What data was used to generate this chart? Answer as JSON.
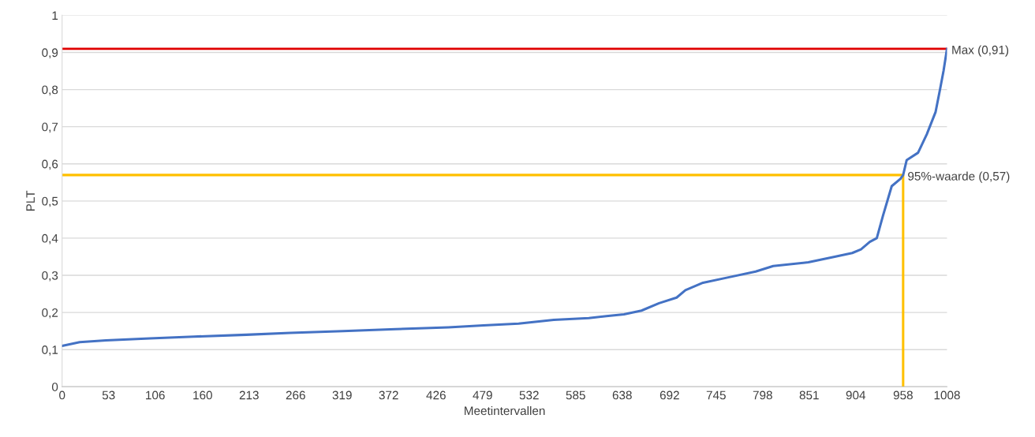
{
  "chart_data": {
    "type": "line",
    "xlabel": "Meetintervallen",
    "ylabel": "PLT",
    "xlim": [
      0,
      1008
    ],
    "xticks": [
      0,
      53,
      106,
      160,
      213,
      266,
      319,
      372,
      426,
      479,
      532,
      585,
      638,
      692,
      745,
      798,
      851,
      904,
      958,
      1008
    ],
    "ylim": [
      0,
      1
    ],
    "yticks": [
      {
        "value": 0,
        "label": "0"
      },
      {
        "value": 0.1,
        "label": "0,1"
      },
      {
        "value": 0.2,
        "label": "0,2"
      },
      {
        "value": 0.3,
        "label": "0,3"
      },
      {
        "value": 0.4,
        "label": "0,4"
      },
      {
        "value": 0.5,
        "label": "0,5"
      },
      {
        "value": 0.6,
        "label": "0,6"
      },
      {
        "value": 0.7,
        "label": "0,7"
      },
      {
        "value": 0.8,
        "label": "0,8"
      },
      {
        "value": 0.9,
        "label": "0,9"
      },
      {
        "value": 1,
        "label": "1"
      }
    ],
    "grid": "y",
    "legend": false,
    "marker": "none",
    "line_style": "solid",
    "series": [
      {
        "color": "#4472c4",
        "x": [
          0,
          20,
          50,
          100,
          150,
          210,
          260,
          320,
          380,
          440,
          480,
          520,
          560,
          600,
          620,
          640,
          660,
          680,
          700,
          710,
          730,
          760,
          790,
          810,
          850,
          880,
          900,
          910,
          920,
          928,
          935,
          945,
          955,
          958,
          962,
          975,
          985,
          995,
          1000,
          1004,
          1008
        ],
        "values": [
          0.11,
          0.12,
          0.125,
          0.13,
          0.135,
          0.14,
          0.145,
          0.15,
          0.155,
          0.16,
          0.165,
          0.17,
          0.18,
          0.185,
          0.19,
          0.195,
          0.205,
          0.225,
          0.24,
          0.26,
          0.28,
          0.295,
          0.31,
          0.325,
          0.335,
          0.35,
          0.36,
          0.37,
          0.39,
          0.4,
          0.46,
          0.54,
          0.56,
          0.57,
          0.61,
          0.63,
          0.68,
          0.74,
          0.8,
          0.85,
          0.91
        ]
      },
      {
        "color": "#ffc000",
        "x": [
          0,
          958,
          958
        ],
        "values": [
          0.57,
          0.57,
          0
        ]
      }
    ],
    "ref_lines": [
      {
        "axis": "y",
        "value": 0.91,
        "color": "#e00000"
      }
    ],
    "annotations": [
      {
        "text": "Max (0,91)",
        "x": 1008,
        "y": 0.91
      },
      {
        "text": "95%-waarde (0,57)",
        "x": 958,
        "y": 0.57
      }
    ]
  }
}
